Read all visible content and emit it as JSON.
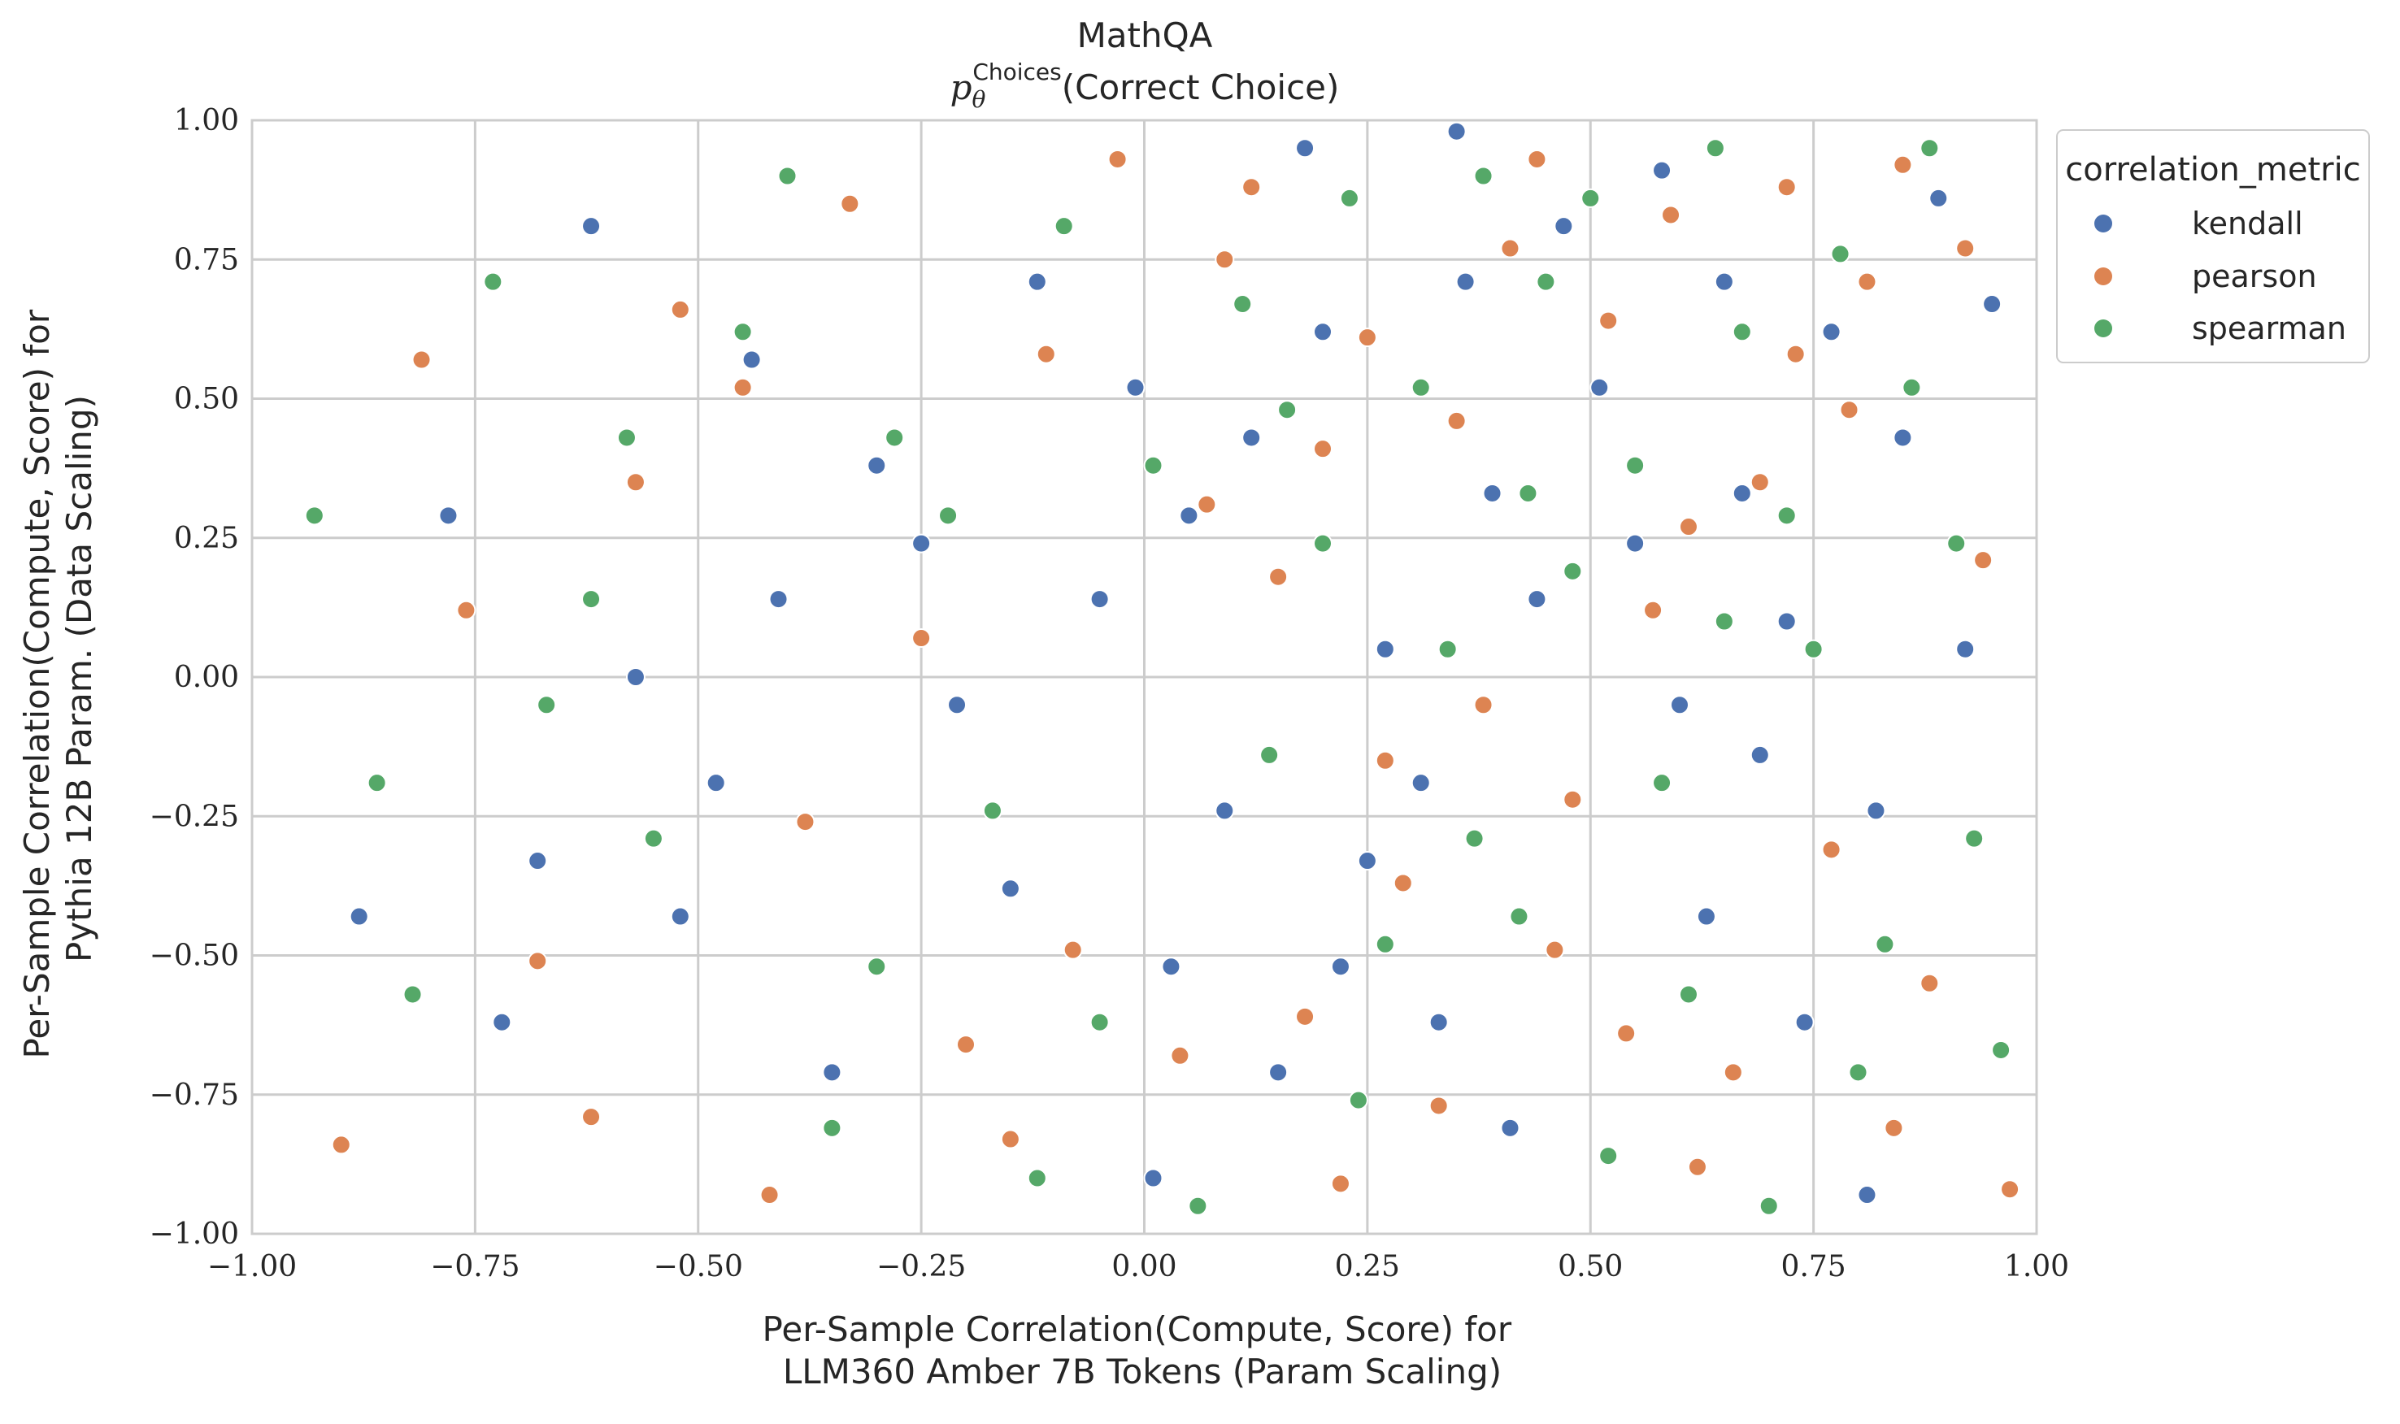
{
  "chart_data": {
    "type": "scatter",
    "title": "MathQA",
    "subtitle": {
      "math_symbol": "p",
      "subscript": "θ",
      "superscript": "Choices",
      "text": "(Correct Choice)"
    },
    "xlabel": [
      "Per-Sample Correlation(Compute, Score) for",
      "LLM360 Amber 7B Tokens (Param Scaling)"
    ],
    "ylabel": [
      "Per-Sample Correlation(Compute, Score) for",
      "Pythia 12B Param. (Data Scaling)"
    ],
    "xlim": [
      -1.0,
      1.0
    ],
    "ylim": [
      -1.0,
      1.0
    ],
    "x_ticks": [
      -1.0,
      -0.75,
      -0.5,
      -0.25,
      0.0,
      0.25,
      0.5,
      0.75,
      1.0
    ],
    "y_ticks": [
      -1.0,
      -0.75,
      -0.5,
      -0.25,
      0.0,
      0.25,
      0.5,
      0.75,
      1.0
    ],
    "x_tick_labels": [
      "−1.00",
      "−0.75",
      "−0.50",
      "−0.25",
      "0.00",
      "0.25",
      "0.50",
      "0.75",
      "1.00"
    ],
    "y_tick_labels": [
      "−1.00",
      "−0.75",
      "−0.50",
      "−0.25",
      "0.00",
      "0.25",
      "0.50",
      "0.75",
      "1.00"
    ],
    "grid": true,
    "legend": {
      "title": "correlation_metric",
      "placement": "outside-upper-right",
      "entries": [
        "kendall",
        "pearson",
        "spearman"
      ]
    },
    "series": [
      {
        "name": "kendall",
        "color": "#4c72b0",
        "points": [
          [
            0.12,
            0.43
          ],
          [
            0.31,
            -0.19
          ],
          [
            -0.44,
            0.57
          ],
          [
            0.58,
            0.91
          ],
          [
            0.74,
            -0.62
          ],
          [
            -0.21,
            -0.05
          ],
          [
            0.05,
            0.29
          ],
          [
            -0.68,
            -0.33
          ],
          [
            0.44,
            0.14
          ],
          [
            0.89,
            0.86
          ],
          [
            -0.12,
            0.71
          ],
          [
            0.22,
            -0.52
          ],
          [
            0.67,
            0.33
          ],
          [
            -0.35,
            -0.71
          ],
          [
            0.01,
            -0.9
          ],
          [
            0.51,
            0.52
          ],
          [
            -0.57,
            0.0
          ],
          [
            0.36,
            0.71
          ],
          [
            0.82,
            -0.24
          ],
          [
            -0.05,
            0.14
          ],
          [
            0.18,
            0.95
          ],
          [
            -0.78,
            0.29
          ],
          [
            0.63,
            -0.43
          ],
          [
            0.27,
            0.05
          ],
          [
            -0.3,
            0.38
          ],
          [
            0.95,
            0.67
          ],
          [
            0.41,
            -0.81
          ],
          [
            -0.15,
            -0.38
          ],
          [
            0.72,
            0.1
          ],
          [
            0.09,
            -0.24
          ],
          [
            -0.88,
            -0.43
          ],
          [
            0.55,
            0.24
          ],
          [
            0.2,
            0.62
          ],
          [
            -0.48,
            -0.19
          ],
          [
            0.85,
            0.43
          ],
          [
            0.33,
            -0.62
          ],
          [
            -0.01,
            0.52
          ],
          [
            0.6,
            -0.05
          ],
          [
            -0.62,
            0.81
          ],
          [
            0.47,
            0.81
          ],
          [
            0.15,
            -0.71
          ],
          [
            0.77,
            0.62
          ],
          [
            -0.25,
            0.24
          ],
          [
            0.03,
            -0.52
          ],
          [
            0.39,
            0.33
          ],
          [
            -0.72,
            -0.62
          ],
          [
            0.69,
            -0.14
          ],
          [
            -0.41,
            0.14
          ],
          [
            0.92,
            0.05
          ],
          [
            0.25,
            -0.33
          ],
          [
            0.81,
            -0.93
          ],
          [
            0.35,
            0.98
          ],
          [
            -0.52,
            -0.43
          ],
          [
            0.65,
            0.71
          ]
        ]
      },
      {
        "name": "pearson",
        "color": "#dd8452",
        "points": [
          [
            0.41,
            0.77
          ],
          [
            0.62,
            -0.88
          ],
          [
            0.85,
            0.92
          ],
          [
            -0.33,
            0.85
          ],
          [
            0.18,
            -0.61
          ],
          [
            0.73,
            0.58
          ],
          [
            -0.62,
            -0.79
          ],
          [
            0.07,
            0.31
          ],
          [
            0.52,
            0.64
          ],
          [
            -0.15,
            -0.83
          ],
          [
            0.94,
            0.21
          ],
          [
            0.29,
            -0.37
          ],
          [
            -0.45,
            0.52
          ],
          [
            0.66,
            -0.71
          ],
          [
            0.12,
            0.88
          ],
          [
            -0.76,
            0.12
          ],
          [
            0.48,
            -0.22
          ],
          [
            0.81,
            0.71
          ],
          [
            -0.08,
            -0.49
          ],
          [
            0.35,
            0.46
          ],
          [
            0.59,
            0.83
          ],
          [
            -0.52,
            0.66
          ],
          [
            0.22,
            -0.91
          ],
          [
            0.88,
            -0.55
          ],
          [
            -0.25,
            0.07
          ],
          [
            0.69,
            0.35
          ],
          [
            0.04,
            -0.68
          ],
          [
            0.44,
            0.93
          ],
          [
            -0.68,
            -0.51
          ],
          [
            0.77,
            -0.31
          ],
          [
            0.25,
            0.61
          ],
          [
            -0.38,
            -0.26
          ],
          [
            0.92,
            0.77
          ],
          [
            0.15,
            0.18
          ],
          [
            -0.9,
            -0.84
          ],
          [
            0.57,
            0.12
          ],
          [
            0.33,
            -0.77
          ],
          [
            -0.11,
            0.58
          ],
          [
            0.72,
            0.88
          ],
          [
            -0.57,
            0.35
          ],
          [
            0.46,
            -0.49
          ],
          [
            0.84,
            -0.81
          ],
          [
            -0.2,
            -0.66
          ],
          [
            0.61,
            0.27
          ],
          [
            0.09,
            0.75
          ],
          [
            -0.81,
            0.57
          ],
          [
            0.38,
            -0.05
          ],
          [
            0.97,
            -0.92
          ],
          [
            0.2,
            0.41
          ],
          [
            -0.42,
            -0.93
          ],
          [
            0.54,
            -0.64
          ],
          [
            0.79,
            0.48
          ],
          [
            -0.03,
            0.93
          ],
          [
            0.27,
            -0.15
          ]
        ]
      },
      {
        "name": "spearman",
        "color": "#55a868",
        "points": [
          [
            0.5,
            0.86
          ],
          [
            0.72,
            0.29
          ],
          [
            -0.28,
            0.43
          ],
          [
            0.14,
            -0.14
          ],
          [
            0.61,
            -0.57
          ],
          [
            0.88,
            0.95
          ],
          [
            -0.55,
            -0.29
          ],
          [
            0.31,
            0.52
          ],
          [
            0.8,
            -0.71
          ],
          [
            -0.09,
            0.81
          ],
          [
            0.42,
            -0.43
          ],
          [
            0.67,
            0.62
          ],
          [
            -0.73,
            0.71
          ],
          [
            0.2,
            0.24
          ],
          [
            0.55,
            0.38
          ],
          [
            -0.35,
            -0.81
          ],
          [
            0.93,
            -0.29
          ],
          [
            0.06,
            -0.95
          ],
          [
            0.38,
            0.9
          ],
          [
            -0.62,
            0.14
          ],
          [
            0.75,
            0.05
          ],
          [
            -0.17,
            -0.24
          ],
          [
            0.48,
            0.19
          ],
          [
            0.24,
            -0.76
          ],
          [
            -0.45,
            0.62
          ],
          [
            0.86,
            0.52
          ],
          [
            0.11,
            0.67
          ],
          [
            -0.82,
            -0.57
          ],
          [
            0.58,
            -0.19
          ],
          [
            0.34,
            0.05
          ],
          [
            -0.22,
            0.29
          ],
          [
            0.7,
            -0.95
          ],
          [
            0.45,
            0.71
          ],
          [
            -0.05,
            -0.62
          ],
          [
            0.91,
            0.24
          ],
          [
            -0.67,
            -0.05
          ],
          [
            0.27,
            -0.48
          ],
          [
            0.64,
            0.95
          ],
          [
            -0.4,
            0.9
          ],
          [
            0.16,
            0.48
          ],
          [
            0.83,
            -0.48
          ],
          [
            -0.12,
            -0.9
          ],
          [
            0.52,
            -0.86
          ],
          [
            -0.93,
            0.29
          ],
          [
            0.37,
            -0.29
          ],
          [
            0.78,
            0.76
          ],
          [
            -0.3,
            -0.52
          ],
          [
            0.01,
            0.38
          ],
          [
            0.65,
            0.1
          ],
          [
            -0.58,
            0.43
          ],
          [
            0.23,
            0.86
          ],
          [
            0.96,
            -0.67
          ],
          [
            -0.86,
            -0.19
          ],
          [
            0.43,
            0.33
          ]
        ]
      }
    ]
  }
}
